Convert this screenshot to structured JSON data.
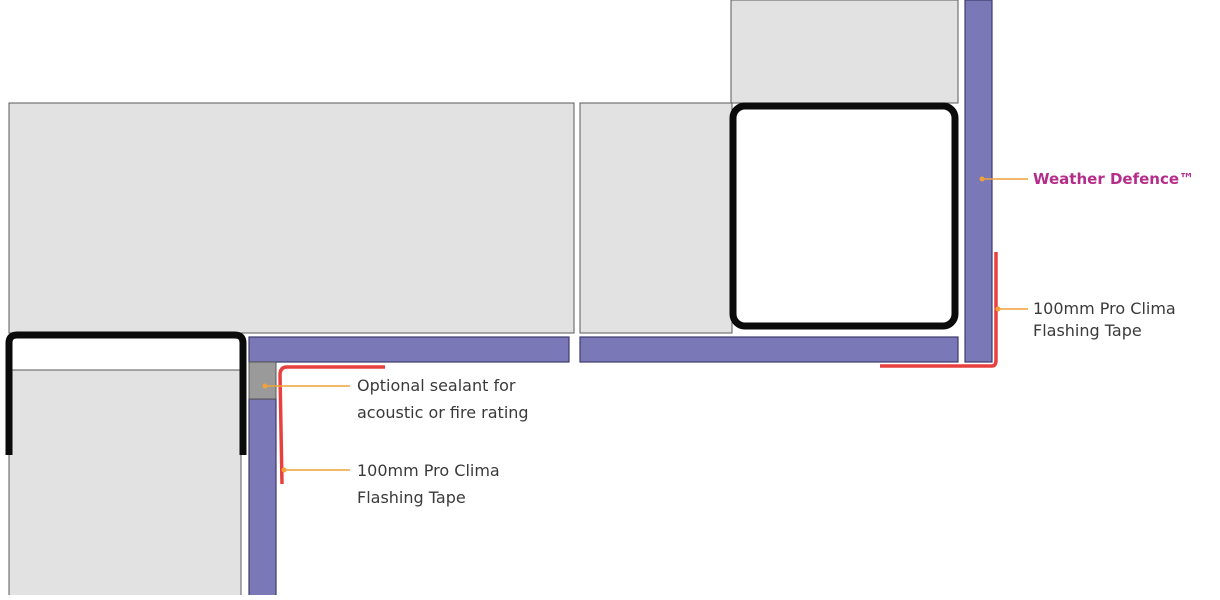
{
  "colors": {
    "background": "#ffffff",
    "grey_panel": "#e1e2e1",
    "purple_board": "#7a78b6",
    "tape_red": "#e8403f",
    "leader_orange": "#f0a13a",
    "frame_black": "#0b0b0b",
    "sealant_grey": "#9a9a9a",
    "brand_magenta": "#b42d8a",
    "label_text": "#3a3a3a"
  },
  "labels": {
    "weather_defence": "Weather Defence™",
    "tape_right_line1": "100mm Pro Clima",
    "tape_right_line2": "Flashing Tape",
    "sealant_line1": "Optional sealant for",
    "sealant_line2": "acoustic or fire rating",
    "tape_left_line1": "100mm Pro Clima",
    "tape_left_line2": "Flashing Tape"
  }
}
